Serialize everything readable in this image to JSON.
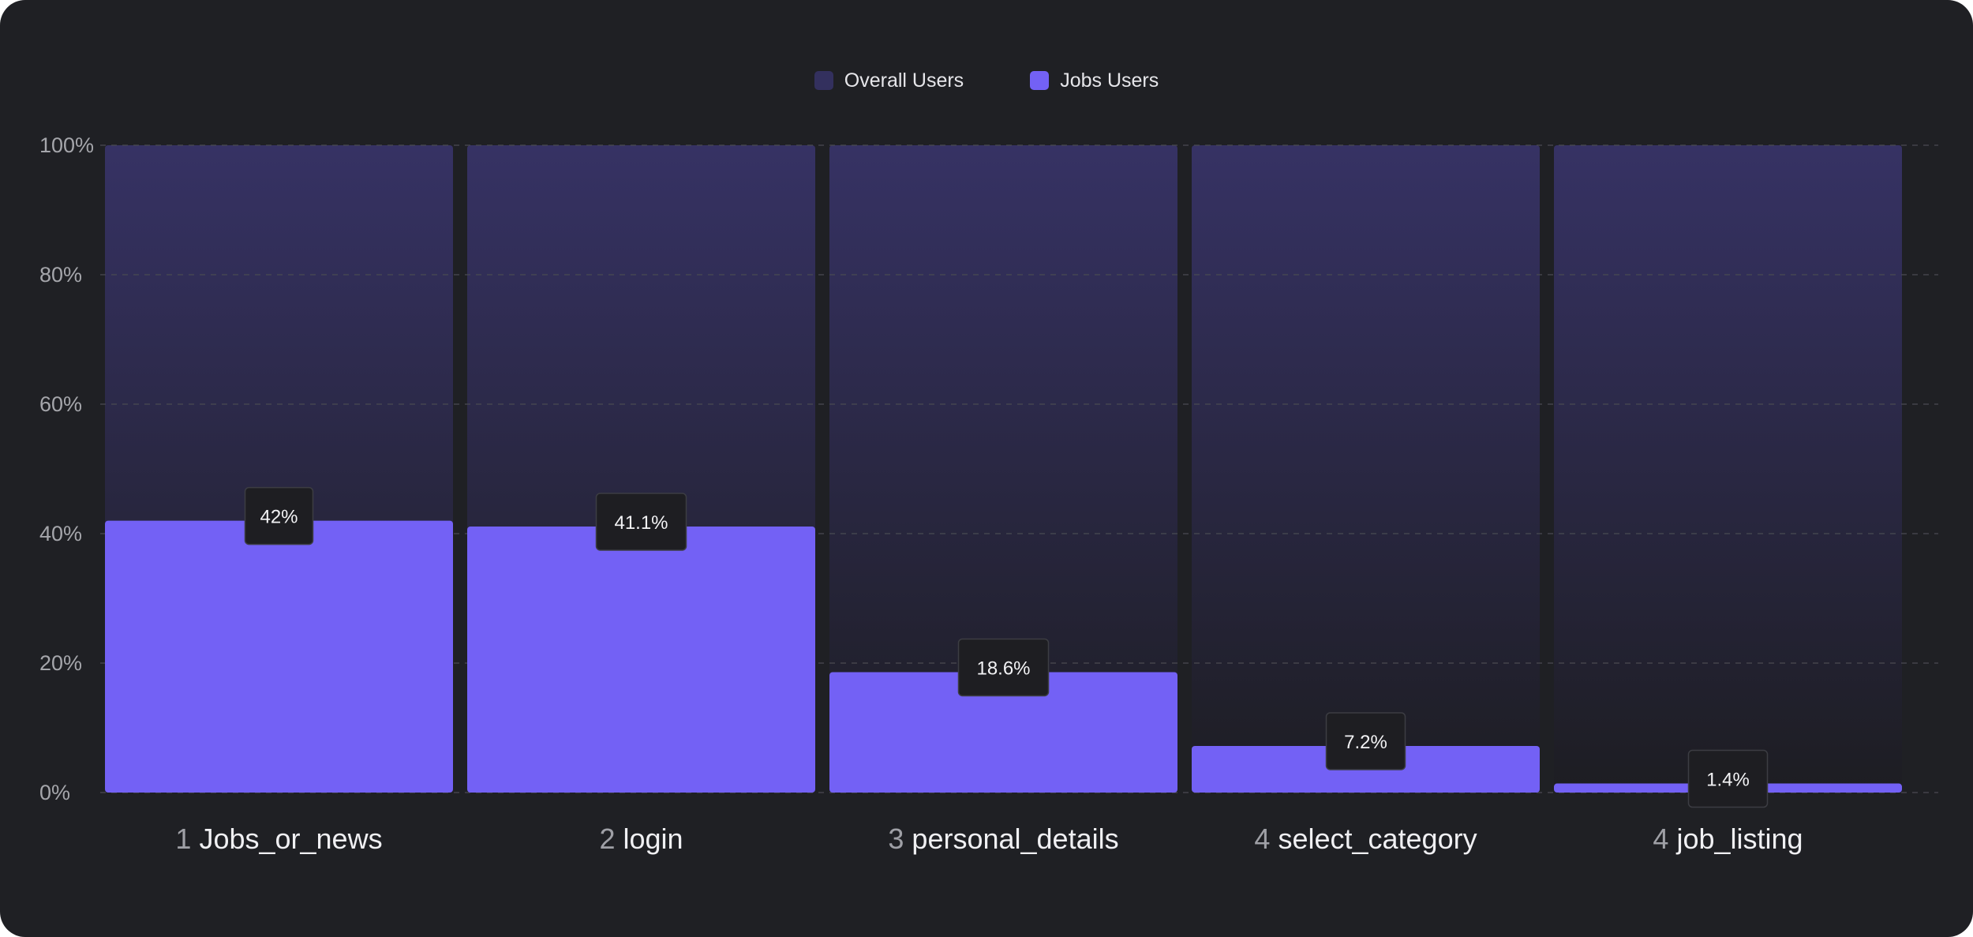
{
  "chart_data": {
    "type": "bar",
    "title": "",
    "xlabel": "",
    "ylabel": "",
    "ylim": [
      0,
      100
    ],
    "yticks": [
      "0%",
      "20%",
      "40%",
      "60%",
      "80%",
      "100%"
    ],
    "grid": true,
    "legend_position": "top-center",
    "categories": [
      {
        "step": "1",
        "name": "Jobs_or_news"
      },
      {
        "step": "2",
        "name": "login"
      },
      {
        "step": "3",
        "name": "personal_details"
      },
      {
        "step": "4",
        "name": "select_category"
      },
      {
        "step": "4",
        "name": "job_listing"
      }
    ],
    "series": [
      {
        "name": "Overall Users",
        "color": "#33305e",
        "values": [
          100,
          100,
          100,
          100,
          100
        ]
      },
      {
        "name": "Jobs Users",
        "color": "#7361f5",
        "values": [
          42,
          41.1,
          18.6,
          7.2,
          1.4
        ],
        "labels": [
          "42%",
          "41.1%",
          "18.6%",
          "7.2%",
          "1.4%"
        ]
      }
    ]
  }
}
